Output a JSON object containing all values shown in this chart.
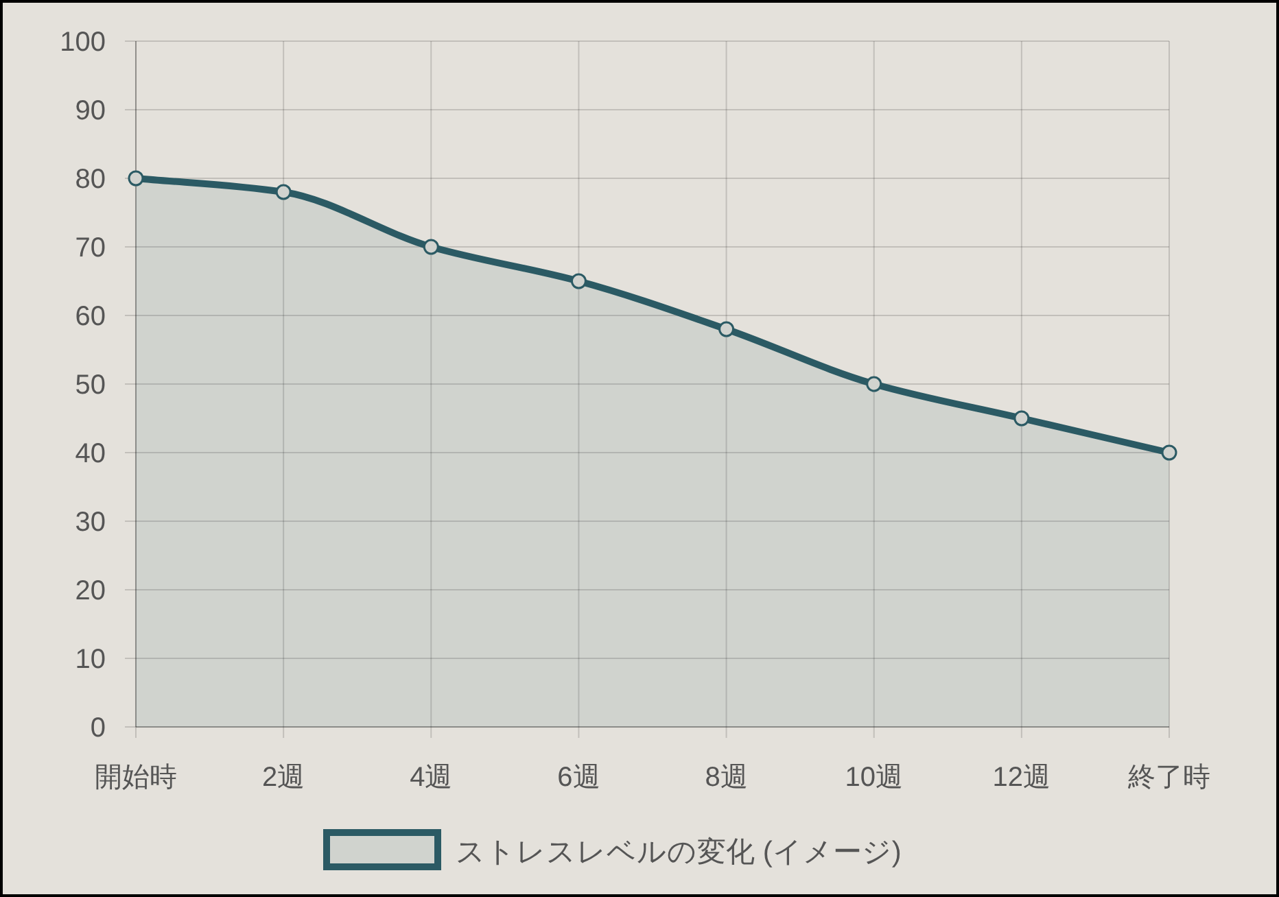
{
  "chart_data": {
    "type": "area",
    "categories": [
      "開始時",
      "2週",
      "4週",
      "6週",
      "8週",
      "10週",
      "12週",
      "終了時"
    ],
    "series": [
      {
        "name": "ストレスレベルの変化 (イメージ)",
        "color": "#2b5a64",
        "values": [
          80,
          78,
          70,
          65,
          58,
          50,
          45,
          40
        ]
      }
    ],
    "ylim": [
      0,
      100
    ],
    "yticks": [
      0,
      10,
      20,
      30,
      40,
      50,
      60,
      70,
      80,
      90,
      100
    ],
    "grid": true,
    "legend": "bottom",
    "marker": "circle"
  }
}
